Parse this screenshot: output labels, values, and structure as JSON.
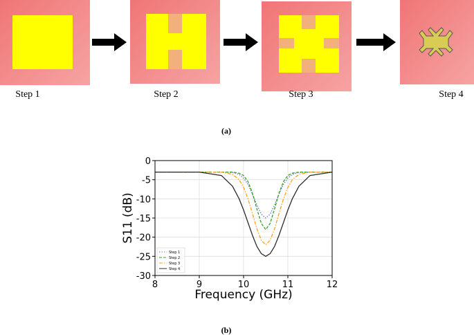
{
  "panel_a": {
    "steps": [
      "Step 1",
      "Step 2",
      "Step 3",
      "Step 4"
    ],
    "caption": "(a)"
  },
  "chart_data": {
    "type": "line",
    "xlabel": "Frequency (GHz)",
    "ylabel": "S11 (dB)",
    "x": [
      8,
      9,
      9.5,
      9.75,
      9.9,
      10,
      10.1,
      10.2,
      10.3,
      10.4,
      10.5,
      10.6,
      10.7,
      10.8,
      10.9,
      11,
      11.1,
      11.25,
      11.5,
      12
    ],
    "series": [
      {
        "name": "Step 1",
        "color": "#6f6fd0",
        "linestyle": "dotted",
        "values": [
          -3,
          -3,
          -3,
          -3.1,
          -3.6,
          -4.6,
          -6.2,
          -8.8,
          -11.6,
          -14,
          -15,
          -14,
          -11.6,
          -8.8,
          -6.2,
          -4.6,
          -3.6,
          -3.1,
          -3,
          -3
        ]
      },
      {
        "name": "Step 2",
        "color": "#2ca02c",
        "linestyle": "dashed",
        "values": [
          -3,
          -3,
          -3,
          -3,
          -3.3,
          -3.9,
          -5.5,
          -8.5,
          -12.6,
          -16.4,
          -18,
          -16.4,
          -12.6,
          -8.5,
          -5.5,
          -3.9,
          -3.3,
          -3,
          -3,
          -3
        ]
      },
      {
        "name": "Step 3",
        "color": "#ff9f1c",
        "linestyle": "dashdot",
        "values": [
          -3,
          -3,
          -3,
          -3.6,
          -5,
          -7,
          -10,
          -13.8,
          -17.8,
          -20.8,
          -22,
          -20.8,
          -17.8,
          -13.8,
          -10,
          -7,
          -5,
          -3.6,
          -3,
          -3
        ]
      },
      {
        "name": "Step 4",
        "color": "#2b2b2b",
        "linestyle": "solid",
        "values": [
          -3,
          -3,
          -3.9,
          -6.7,
          -10,
          -12.9,
          -16.2,
          -19.5,
          -22.4,
          -24.3,
          -25,
          -24.3,
          -22.4,
          -19.5,
          -16.2,
          -12.9,
          -10,
          -6.7,
          -3.9,
          -3
        ]
      }
    ],
    "xlim": [
      8,
      12
    ],
    "xticks": [
      8,
      9,
      10,
      11,
      12
    ],
    "ylim": [
      -30,
      0
    ],
    "yticks": [
      0,
      -5,
      -10,
      -15,
      -20,
      -25,
      -30
    ],
    "grid": true,
    "legend": "lower left"
  },
  "caption_b": "(b)"
}
